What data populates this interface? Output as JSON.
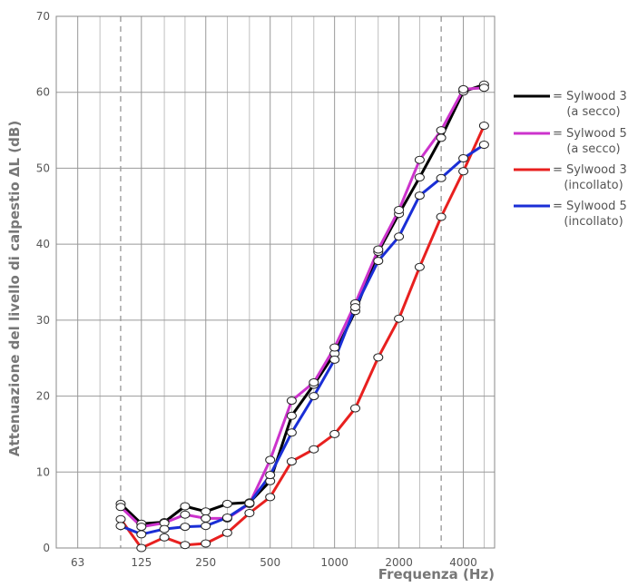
{
  "chart_data": {
    "type": "line",
    "title": "",
    "xlabel": "Frequenza (Hz)",
    "ylabel": "Attenuazione del livello di calpestio ΔL (dB)",
    "x_scale": "log",
    "x_tick_labels": [
      "63",
      "125",
      "250",
      "500",
      "1000",
      "2000",
      "4000"
    ],
    "y_ticks": [
      "0",
      "10",
      "20",
      "30",
      "40",
      "50",
      "60",
      "70"
    ],
    "ylim": [
      0,
      70
    ],
    "grid": true,
    "legend_position": "right",
    "x": [
      100,
      125,
      160,
      200,
      250,
      315,
      400,
      500,
      630,
      800,
      1000,
      1250,
      1600,
      2000,
      2500,
      3150,
      4000,
      5000
    ],
    "series": [
      {
        "name": "Sylwood 3",
        "name_line2": "(a secco)",
        "color": "#000000",
        "values": [
          5.8,
          3.2,
          3.4,
          5.5,
          4.8,
          5.8,
          6.0,
          8.8,
          17.4,
          21.5,
          25.6,
          31.2,
          39.0,
          44.0,
          48.8,
          54.0,
          60.1,
          61.0
        ]
      },
      {
        "name": "Sylwood 5",
        "name_line2": "(a secco)",
        "color": "#cc33cc",
        "values": [
          5.4,
          2.8,
          3.3,
          4.4,
          3.9,
          3.9,
          5.8,
          11.6,
          19.4,
          21.8,
          26.4,
          32.2,
          39.3,
          44.5,
          51.1,
          55.0,
          60.4,
          60.6
        ]
      },
      {
        "name": "Sylwood 3",
        "name_line2": "(incollato)",
        "color": "#e8201f",
        "values": [
          3.8,
          0.0,
          1.4,
          0.4,
          0.6,
          2.0,
          4.6,
          6.7,
          11.4,
          13.0,
          15.0,
          18.4,
          25.1,
          30.2,
          37.0,
          43.6,
          49.6,
          55.6
        ]
      },
      {
        "name": "Sylwood 5",
        "name_line2": "(incollato)",
        "color": "#1a2ed6",
        "values": [
          2.9,
          1.8,
          2.5,
          2.8,
          2.9,
          4.0,
          5.9,
          9.6,
          15.2,
          20.0,
          24.8,
          31.7,
          37.8,
          41.0,
          46.4,
          48.7,
          51.3,
          53.1
        ]
      }
    ],
    "legend_prefix": "= "
  }
}
